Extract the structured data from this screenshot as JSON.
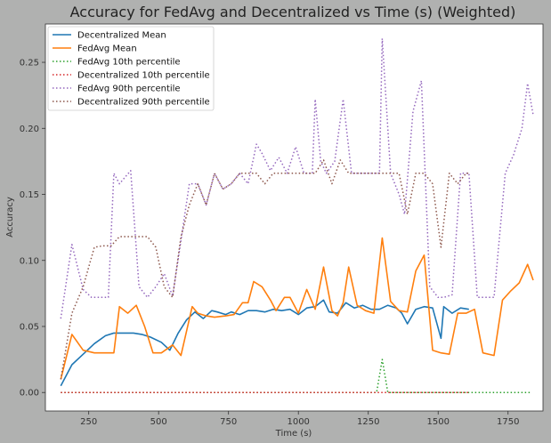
{
  "chart_data": {
    "type": "line",
    "title": "Accuracy for FedAvg and Decentralized vs Time (s) (Weighted)",
    "xlabel": "Time (s)",
    "ylabel": "Accuracy",
    "xlim": [
      95,
      1875
    ],
    "ylim": [
      -0.014,
      0.279
    ],
    "xticks": [
      250,
      500,
      750,
      1000,
      1250,
      1500,
      1750
    ],
    "yticks": [
      0.0,
      0.05,
      0.1,
      0.15,
      0.2,
      0.25
    ],
    "ytick_labels": [
      "0.00",
      "0.05",
      "0.10",
      "0.15",
      "0.20",
      "0.25"
    ],
    "grid": false,
    "legend_position": "top-left",
    "series": [
      {
        "name": "Decentralized Mean",
        "color": "#1f77b4",
        "style": "solid",
        "x": [
          150,
          190,
          230,
          270,
          310,
          340,
          370,
          410,
          440,
          470,
          510,
          540,
          570,
          600,
          630,
          660,
          690,
          710,
          740,
          760,
          790,
          820,
          850,
          880,
          910,
          940,
          970,
          1000,
          1030,
          1060,
          1090,
          1110,
          1140,
          1170,
          1200,
          1230,
          1260,
          1290,
          1320,
          1350,
          1370,
          1390,
          1420,
          1450,
          1480,
          1510,
          1520,
          1550,
          1580,
          1610
        ],
        "y": [
          0.005,
          0.021,
          0.029,
          0.037,
          0.043,
          0.045,
          0.045,
          0.045,
          0.044,
          0.042,
          0.038,
          0.032,
          0.045,
          0.055,
          0.061,
          0.056,
          0.062,
          0.061,
          0.059,
          0.061,
          0.059,
          0.062,
          0.062,
          0.061,
          0.063,
          0.062,
          0.063,
          0.059,
          0.064,
          0.065,
          0.07,
          0.061,
          0.06,
          0.068,
          0.064,
          0.066,
          0.063,
          0.063,
          0.066,
          0.064,
          0.06,
          0.052,
          0.063,
          0.065,
          0.064,
          0.041,
          0.065,
          0.06,
          0.064,
          0.063
        ]
      },
      {
        "name": "FedAvg Mean",
        "color": "#ff7f0e",
        "style": "solid",
        "x": [
          150,
          190,
          230,
          270,
          310,
          340,
          360,
          390,
          420,
          450,
          480,
          510,
          550,
          580,
          620,
          640,
          670,
          700,
          740,
          770,
          800,
          820,
          840,
          870,
          900,
          920,
          950,
          970,
          1000,
          1030,
          1060,
          1090,
          1120,
          1140,
          1160,
          1180,
          1210,
          1240,
          1270,
          1300,
          1330,
          1360,
          1390,
          1420,
          1450,
          1480,
          1510,
          1540,
          1570,
          1600,
          1630,
          1660,
          1700,
          1730,
          1760,
          1790,
          1820,
          1840
        ],
        "y": [
          0.01,
          0.044,
          0.032,
          0.03,
          0.03,
          0.03,
          0.065,
          0.06,
          0.066,
          0.05,
          0.03,
          0.03,
          0.036,
          0.028,
          0.065,
          0.06,
          0.058,
          0.057,
          0.058,
          0.059,
          0.068,
          0.068,
          0.084,
          0.08,
          0.07,
          0.062,
          0.072,
          0.072,
          0.06,
          0.078,
          0.063,
          0.095,
          0.062,
          0.058,
          0.068,
          0.095,
          0.066,
          0.062,
          0.06,
          0.117,
          0.069,
          0.062,
          0.061,
          0.092,
          0.104,
          0.032,
          0.03,
          0.029,
          0.06,
          0.06,
          0.063,
          0.03,
          0.028,
          0.07,
          0.077,
          0.083,
          0.097,
          0.085
        ]
      },
      {
        "name": "FedAvg 10th percentile",
        "color": "#2ca02c",
        "style": "dotted",
        "x": [
          150,
          300,
          500,
          700,
          900,
          1100,
          1260,
          1280,
          1300,
          1320,
          1340,
          1500,
          1600,
          1700,
          1830
        ],
        "y": [
          0.0,
          0.0,
          0.0,
          0.0,
          0.0,
          0.0,
          0.0,
          0.0,
          0.025,
          0.0,
          0.0,
          0.0,
          0.0,
          0.0,
          0.0
        ]
      },
      {
        "name": "Decentralized 10th percentile",
        "color": "#d62728",
        "style": "dotted",
        "x": [
          150,
          400,
          700,
          1000,
          1300,
          1610
        ],
        "y": [
          0.0,
          0.0,
          0.0,
          0.0,
          0.0,
          0.0
        ]
      },
      {
        "name": "FedAvg 90th percentile",
        "color": "#9467bd",
        "style": "dotted",
        "x": [
          150,
          190,
          230,
          260,
          290,
          320,
          340,
          360,
          400,
          430,
          460,
          490,
          520,
          550,
          580,
          610,
          640,
          670,
          700,
          730,
          760,
          790,
          820,
          850,
          870,
          900,
          930,
          960,
          990,
          1020,
          1050,
          1060,
          1080,
          1100,
          1130,
          1160,
          1190,
          1220,
          1260,
          1290,
          1300,
          1330,
          1360,
          1380,
          1410,
          1440,
          1470,
          1500,
          1520,
          1550,
          1580,
          1610,
          1640,
          1670,
          1700,
          1740,
          1770,
          1800,
          1820,
          1840
        ],
        "y": [
          0.056,
          0.112,
          0.078,
          0.072,
          0.072,
          0.072,
          0.166,
          0.158,
          0.168,
          0.08,
          0.072,
          0.08,
          0.09,
          0.073,
          0.115,
          0.158,
          0.158,
          0.142,
          0.166,
          0.154,
          0.158,
          0.166,
          0.158,
          0.188,
          0.181,
          0.168,
          0.178,
          0.166,
          0.186,
          0.166,
          0.166,
          0.222,
          0.175,
          0.166,
          0.175,
          0.222,
          0.166,
          0.166,
          0.166,
          0.166,
          0.268,
          0.166,
          0.15,
          0.135,
          0.213,
          0.236,
          0.08,
          0.072,
          0.072,
          0.074,
          0.166,
          0.166,
          0.072,
          0.072,
          0.072,
          0.166,
          0.18,
          0.2,
          0.234,
          0.21
        ]
      },
      {
        "name": "Decentralized 90th percentile",
        "color": "#8c564b",
        "style": "dotted",
        "x": [
          150,
          190,
          230,
          270,
          300,
          330,
          360,
          400,
          430,
          460,
          490,
          520,
          550,
          580,
          610,
          640,
          670,
          700,
          730,
          760,
          790,
          820,
          850,
          880,
          910,
          940,
          970,
          1000,
          1030,
          1060,
          1090,
          1120,
          1150,
          1180,
          1210,
          1240,
          1270,
          1300,
          1330,
          1360,
          1390,
          1420,
          1450,
          1480,
          1510,
          1540,
          1570,
          1600,
          1610
        ],
        "y": [
          0.01,
          0.06,
          0.08,
          0.11,
          0.111,
          0.111,
          0.118,
          0.118,
          0.118,
          0.118,
          0.11,
          0.08,
          0.072,
          0.118,
          0.142,
          0.158,
          0.142,
          0.166,
          0.154,
          0.158,
          0.166,
          0.166,
          0.166,
          0.158,
          0.166,
          0.166,
          0.166,
          0.166,
          0.166,
          0.166,
          0.176,
          0.158,
          0.176,
          0.166,
          0.166,
          0.166,
          0.166,
          0.166,
          0.166,
          0.166,
          0.135,
          0.166,
          0.166,
          0.158,
          0.11,
          0.166,
          0.158,
          0.166,
          0.166
        ]
      }
    ]
  }
}
